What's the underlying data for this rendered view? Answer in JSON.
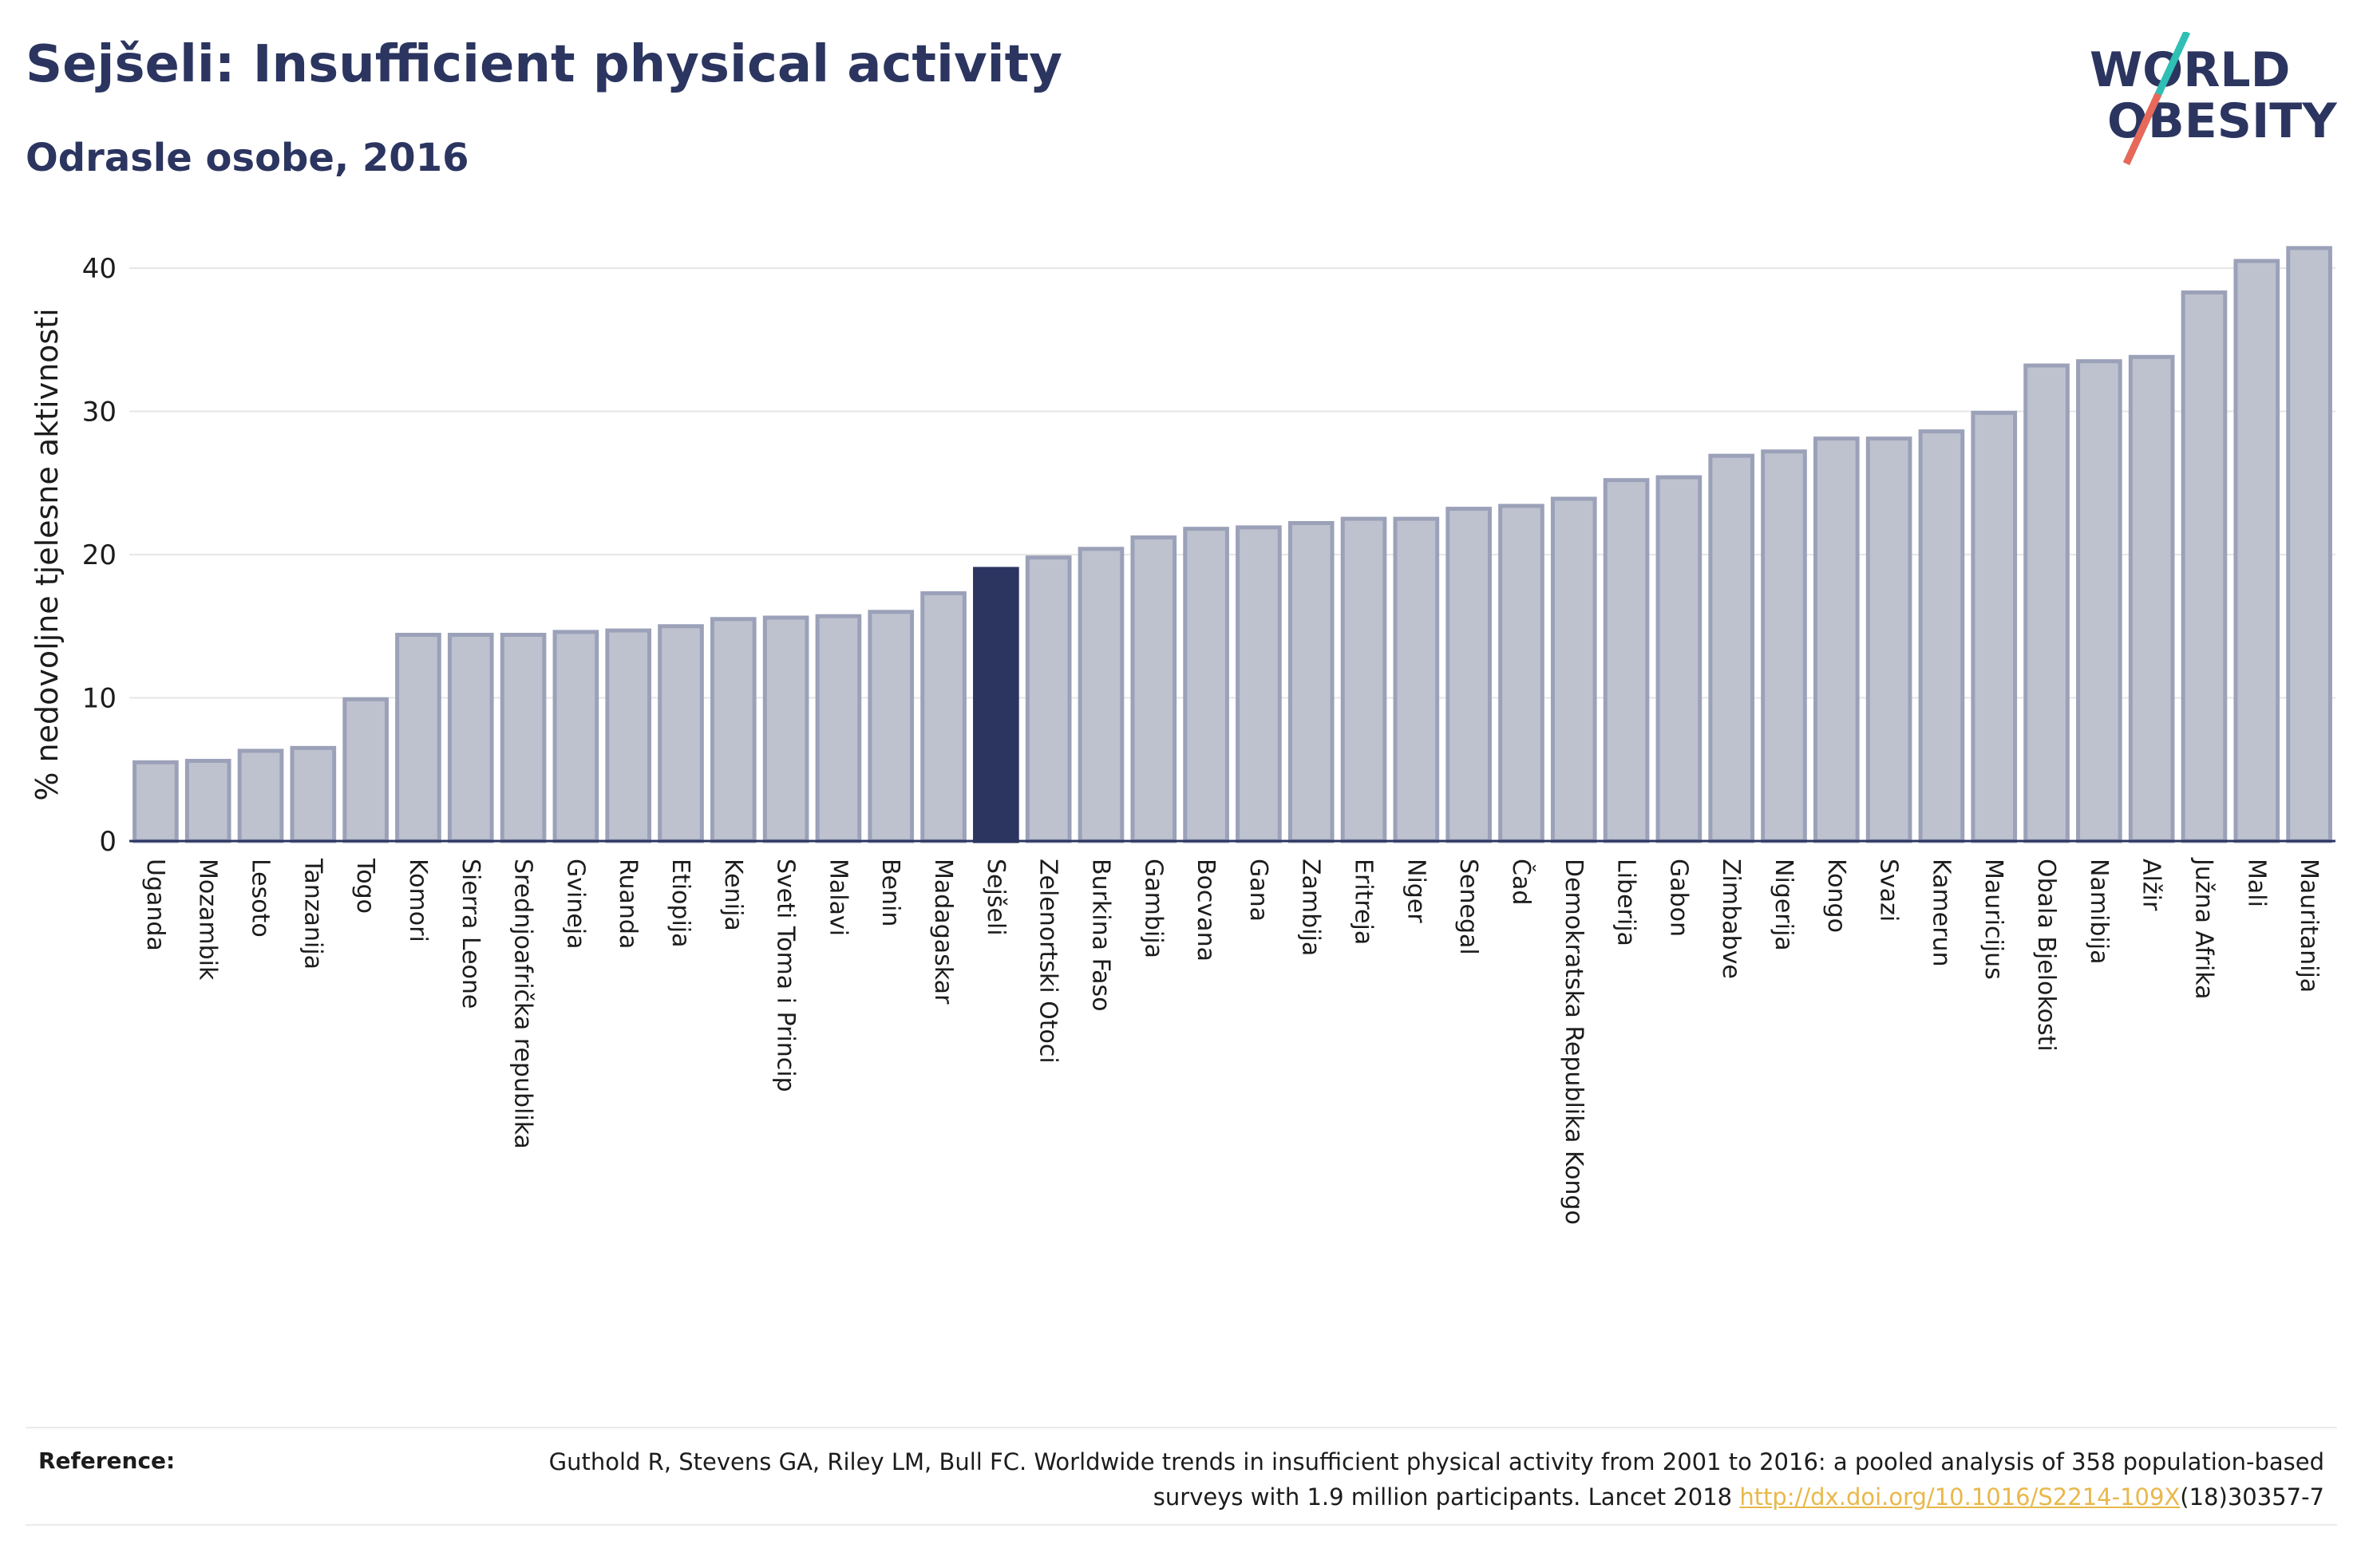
{
  "header": {
    "title": "Sejšeli: Insufficient physical activity",
    "subtitle": "Odrasle osobe, 2016"
  },
  "logo": {
    "line1": "WORLD",
    "line2": "OBESITY"
  },
  "reference": {
    "label": "Reference:",
    "text_before": "Guthold R, Stevens GA, Riley LM, Bull FC. Worldwide trends in insufficient physical activity from 2001 to 2016: a pooled analysis of 358 population-based surveys with 1.9 million participants. Lancet 2018 ",
    "link": "http://dx.doi.org/10.1016/S2214-109X",
    "text_after": "(18)30357-7"
  },
  "colors": {
    "bar_fill": "#bec2cf",
    "bar_stroke": "#9ba1b8",
    "highlight": "#2b3560",
    "grid": "#e6e6e6",
    "axis": "#2b3560"
  },
  "chart_data": {
    "type": "bar",
    "ylabel": "% nedovoljne tjelesne aktivnosti",
    "ylim": [
      0,
      40
    ],
    "yticks": [
      0,
      10,
      20,
      30,
      40
    ],
    "grid": true,
    "highlight": "Sejšeli",
    "categories": [
      "Uganda",
      "Mozambik",
      "Lesoto",
      "Tanzanija",
      "Togo",
      "Komori",
      "Sierra Leone",
      "Srednjoafrička republika",
      "Gvineja",
      "Ruanda",
      "Etiopija",
      "Kenija",
      "Sveti Toma i Princip",
      "Malavi",
      "Benin",
      "Madagaskar",
      "Sejšeli",
      "Zelenortski Otoci",
      "Burkina Faso",
      "Gambija",
      "Bocvana",
      "Gana",
      "Zambija",
      "Eritreja",
      "Niger",
      "Senegal",
      "Čad",
      "Demokratska Republika Kongo",
      "Liberija",
      "Gabon",
      "Zimbabve",
      "Nigerija",
      "Kongo",
      "Svazi",
      "Kamerun",
      "Mauricijus",
      "Obala Bjelokosti",
      "Namibija",
      "Alžir",
      "Južna Afrika",
      "Mali",
      "Mauritanija"
    ],
    "values": [
      5.5,
      5.6,
      6.3,
      6.5,
      9.9,
      14.4,
      14.4,
      14.4,
      14.6,
      14.7,
      15.0,
      15.5,
      15.6,
      15.7,
      16.0,
      17.3,
      19.0,
      19.8,
      20.4,
      21.2,
      21.8,
      21.9,
      22.2,
      22.5,
      22.5,
      23.2,
      23.4,
      23.9,
      25.2,
      25.4,
      26.9,
      27.2,
      28.1,
      28.1,
      28.6,
      29.9,
      33.2,
      33.5,
      33.8,
      38.3,
      40.5,
      41.4
    ]
  }
}
